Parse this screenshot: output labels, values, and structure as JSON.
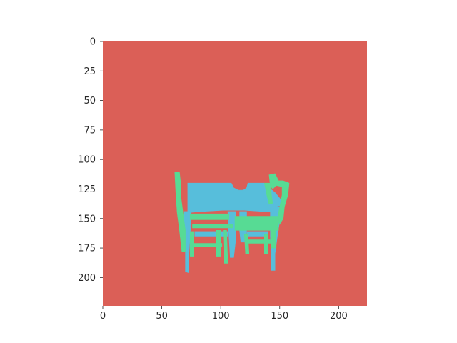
{
  "chart_data": {
    "type": "heatmap",
    "title": "",
    "xlabel": "",
    "ylabel": "",
    "xlim": [
      0,
      224
    ],
    "ylim": [
      224,
      0
    ],
    "x_ticks": [
      "0",
      "50",
      "100",
      "150",
      "200"
    ],
    "y_ticks": [
      "0",
      "25",
      "50",
      "75",
      "100",
      "125",
      "150",
      "175",
      "200"
    ],
    "grid": false,
    "legend": "none",
    "colors": {
      "background_class": "#db5f57",
      "class_cyan": "#57bedb",
      "class_green": "#57db94"
    },
    "segments": [
      {
        "class": "class_cyan",
        "label": "table",
        "polygons": [
          [
            [
              72,
              120
            ],
            [
              109,
              120
            ],
            [
              111,
              124
            ],
            [
              115,
              126
            ],
            [
              119,
              126
            ],
            [
              122,
              124
            ],
            [
              123,
              120
            ],
            [
              137,
              120
            ],
            [
              141,
              124
            ],
            [
              146,
              128
            ],
            [
              151,
              134
            ],
            [
              151,
              139
            ],
            [
              146,
              140
            ],
            [
              144,
              144
            ],
            [
              136,
              144
            ],
            [
              120,
              143
            ],
            [
              102,
              143
            ],
            [
              84,
              144
            ],
            [
              72,
              145
            ]
          ],
          [
            [
              69,
              144
            ],
            [
              75,
              144
            ],
            [
              74,
              165
            ],
            [
              73,
              180
            ],
            [
              73,
              196
            ],
            [
              70,
              195
            ],
            [
              70,
              175
            ],
            [
              69,
              160
            ]
          ],
          [
            [
              142,
              140
            ],
            [
              150,
              140
            ],
            [
              150,
              152
            ],
            [
              148,
              165
            ],
            [
              146,
              180
            ],
            [
              146,
              194
            ],
            [
              143,
              194
            ],
            [
              143,
              180
            ],
            [
              142,
              165
            ],
            [
              142,
              150
            ]
          ],
          [
            [
              106,
              144
            ],
            [
              113,
              144
            ],
            [
              113,
              165
            ],
            [
              111,
              183
            ],
            [
              108,
              183
            ],
            [
              107,
              165
            ]
          ],
          [
            [
              116,
              144
            ],
            [
              122,
              144
            ],
            [
              122,
              160
            ],
            [
              120,
              170
            ],
            [
              117,
              170
            ],
            [
              116,
              160
            ]
          ],
          [
            [
              78,
              161
            ],
            [
              106,
              161
            ],
            [
              106,
              165
            ],
            [
              78,
              165
            ]
          ],
          [
            [
              122,
              161
            ],
            [
              140,
              161
            ],
            [
              140,
              165
            ],
            [
              122,
              165
            ]
          ]
        ]
      },
      {
        "class": "class_green",
        "label": "chairs",
        "polygons": [
          [
            [
              61,
              111
            ],
            [
              65,
              111
            ],
            [
              66,
              120
            ],
            [
              66,
              130
            ],
            [
              68,
              145
            ],
            [
              70,
              160
            ],
            [
              70,
              178
            ],
            [
              67,
              178
            ],
            [
              65,
              160
            ],
            [
              63,
              145
            ],
            [
              62,
              130
            ]
          ],
          [
            [
              74,
              146
            ],
            [
              107,
              146
            ],
            [
              107,
              151
            ],
            [
              74,
              151
            ]
          ],
          [
            [
              76,
              155
            ],
            [
              110,
              155
            ],
            [
              110,
              158
            ],
            [
              76,
              158
            ]
          ],
          [
            [
              74,
              161
            ],
            [
              77,
              161
            ],
            [
              77,
              182
            ],
            [
              74,
              182
            ]
          ],
          [
            [
              96,
              160
            ],
            [
              100,
              160
            ],
            [
              100,
              182
            ],
            [
              96,
              182
            ]
          ],
          [
            [
              102,
              160
            ],
            [
              105,
              160
            ],
            [
              106,
              188
            ],
            [
              103,
              188
            ]
          ],
          [
            [
              76,
              171
            ],
            [
              101,
              171
            ],
            [
              101,
              174
            ],
            [
              76,
              174
            ]
          ],
          [
            [
              141,
              113
            ],
            [
              146,
              112
            ],
            [
              149,
              118
            ],
            [
              153,
              118
            ],
            [
              158,
              120
            ],
            [
              157,
              130
            ],
            [
              154,
              140
            ],
            [
              153,
              150
            ],
            [
              150,
              155
            ],
            [
              148,
              150
            ],
            [
              150,
              140
            ],
            [
              152,
              130
            ],
            [
              152,
              123
            ],
            [
              147,
              122
            ],
            [
              144,
              125
            ],
            [
              142,
              122
            ]
          ],
          [
            [
              137,
              120
            ],
            [
              142,
              120
            ],
            [
              143,
              130
            ],
            [
              144,
              137
            ],
            [
              141,
              138
            ],
            [
              139,
              130
            ]
          ],
          [
            [
              112,
              148
            ],
            [
              149,
              148
            ],
            [
              149,
              160
            ],
            [
              112,
              160
            ]
          ],
          [
            [
              120,
              163
            ],
            [
              123,
              163
            ],
            [
              124,
              180
            ],
            [
              121,
              180
            ]
          ],
          [
            [
              137,
              163
            ],
            [
              140,
              163
            ],
            [
              140,
              180
            ],
            [
              137,
              180
            ]
          ],
          [
            [
              122,
              168
            ],
            [
              142,
              168
            ],
            [
              142,
              171
            ],
            [
              122,
              171
            ]
          ],
          [
            [
              143,
              160
            ],
            [
              147,
              160
            ],
            [
              147,
              175
            ],
            [
              143,
              175
            ]
          ]
        ]
      }
    ]
  }
}
